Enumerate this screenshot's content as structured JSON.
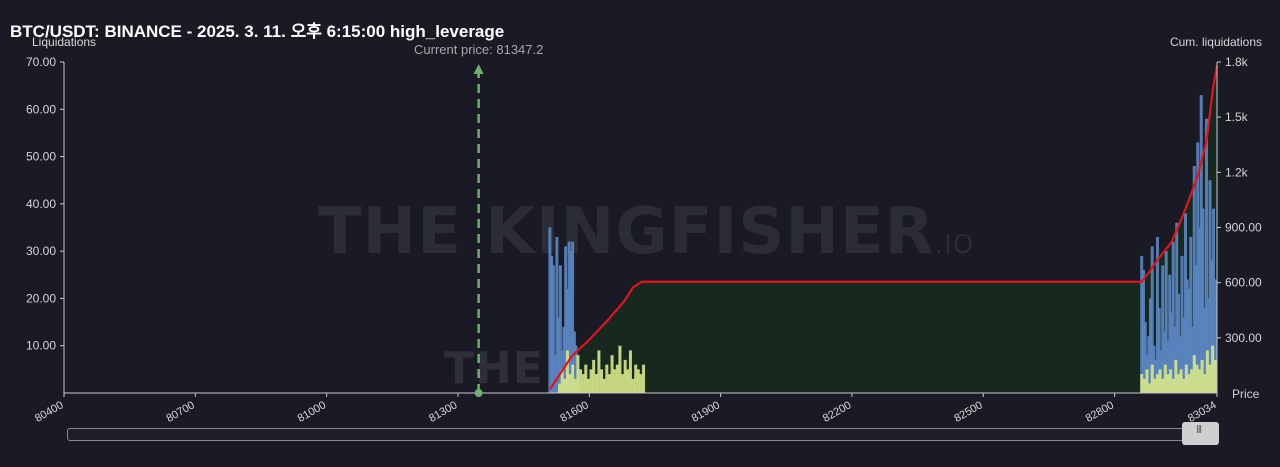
{
  "header": {
    "title": "BTC/USDT: BINANCE - 2025. 3. 11. 오후 6:15:00 high_leverage"
  },
  "watermark": {
    "text": "THE KINGFISHER",
    "suffix": ".IO"
  },
  "colors": {
    "background": "#191a24",
    "cum_line": "#e0141e",
    "cum_fill": "#17281f",
    "long_bars": "#5b86c2",
    "short_bars": "#d6e58a",
    "current_price_line": "#6fae6f"
  },
  "chart_data": {
    "type": "bar",
    "title": "BTC/USDT: BINANCE - 2025. 3. 11. 오후 6:15:00 high_leverage",
    "ylabel": "Liquidations",
    "y2label": "Cum. liquidations",
    "xlabel": "Price",
    "xlim": [
      80400,
      83034
    ],
    "ylim": [
      0,
      70
    ],
    "y2lim": [
      0,
      1800
    ],
    "x_ticks": [
      "80400",
      "80700",
      "81000",
      "81300",
      "81600",
      "81900",
      "82200",
      "82500",
      "82800",
      "83034"
    ],
    "y_ticks": [
      "10.00",
      "20.00",
      "30.00",
      "40.00",
      "50.00",
      "60.00",
      "70.00"
    ],
    "y2_ticks": [
      "300.00",
      "600.00",
      "900.00",
      "1.2k",
      "1.5k",
      "1.8k"
    ],
    "current_price": {
      "label": "Current price: 81347.2",
      "value": 81347.2
    },
    "series": [
      {
        "kind": "bars",
        "x": [
          81510,
          81514,
          81518,
          81522,
          81526,
          81530,
          81534,
          81538,
          81542,
          81546,
          81550,
          81554,
          81558,
          81562,
          81566,
          81570,
          81574,
          82862,
          82866,
          82870,
          82874,
          82878,
          82882,
          82886,
          82890,
          82894,
          82898,
          82902,
          82906,
          82910,
          82914,
          82918,
          82922,
          82926,
          82930,
          82934,
          82938,
          82942,
          82946,
          82950,
          82954,
          82958,
          82962,
          82966,
          82970,
          82974,
          82978,
          82982,
          82986,
          82990,
          82994,
          82998,
          83002,
          83006,
          83010,
          83014,
          83018,
          83022,
          83026,
          83030
        ],
        "values": [
          35,
          29,
          27,
          8,
          33,
          16,
          27,
          9,
          14,
          31,
          22,
          32,
          30,
          32,
          13,
          10,
          5,
          29,
          26,
          15,
          8,
          12,
          20,
          31,
          10,
          7,
          33,
          18,
          9,
          27,
          13,
          30,
          11,
          25,
          17,
          32,
          14,
          36,
          21,
          12,
          29,
          16,
          38,
          24,
          22,
          33,
          14,
          48,
          27,
          53,
          35,
          63,
          39,
          18,
          58,
          20,
          45,
          28,
          39,
          24
        ]
      },
      {
        "kind": "bars",
        "x": [
          81532,
          81538,
          81544,
          81550,
          81556,
          81562,
          81568,
          81574,
          81580,
          81586,
          81592,
          81598,
          81604,
          81610,
          81616,
          81622,
          81628,
          81634,
          81640,
          81646,
          81652,
          81658,
          81664,
          81670,
          81676,
          81682,
          81688,
          81694,
          81700,
          81706,
          81712,
          81718,
          81724,
          82862,
          82868,
          82874,
          82880,
          82886,
          82892,
          82898,
          82904,
          82910,
          82916,
          82922,
          82928,
          82934,
          82940,
          82946,
          82952,
          82958,
          82964,
          82970,
          82976,
          82982,
          82988,
          82994,
          83000,
          83006,
          83012,
          83018,
          83024,
          83030
        ],
        "values": [
          2,
          5,
          3,
          9,
          4,
          6,
          3,
          8,
          5,
          4,
          6,
          3,
          5,
          7,
          4,
          9,
          5,
          3,
          6,
          4,
          8,
          5,
          6,
          10,
          4,
          7,
          5,
          9,
          3,
          6,
          5,
          4,
          6,
          4,
          3,
          5,
          2,
          6,
          3,
          4,
          5,
          3,
          6,
          4,
          5,
          3,
          7,
          4,
          5,
          3,
          6,
          4,
          5,
          8,
          6,
          5,
          7,
          4,
          9,
          6,
          10,
          7
        ]
      },
      {
        "kind": "cumulative_line",
        "x": [
          81510,
          81560,
          81600,
          81640,
          81680,
          81700,
          81720,
          81800,
          82100,
          82400,
          82700,
          82862,
          82880,
          82900,
          82930,
          82950,
          82970,
          82990,
          83010,
          83025,
          83034
        ],
        "values": [
          20,
          200,
          290,
          390,
          500,
          575,
          605,
          605,
          605,
          605,
          605,
          605,
          660,
          730,
          820,
          930,
          1050,
          1180,
          1370,
          1660,
          1780
        ]
      }
    ]
  }
}
